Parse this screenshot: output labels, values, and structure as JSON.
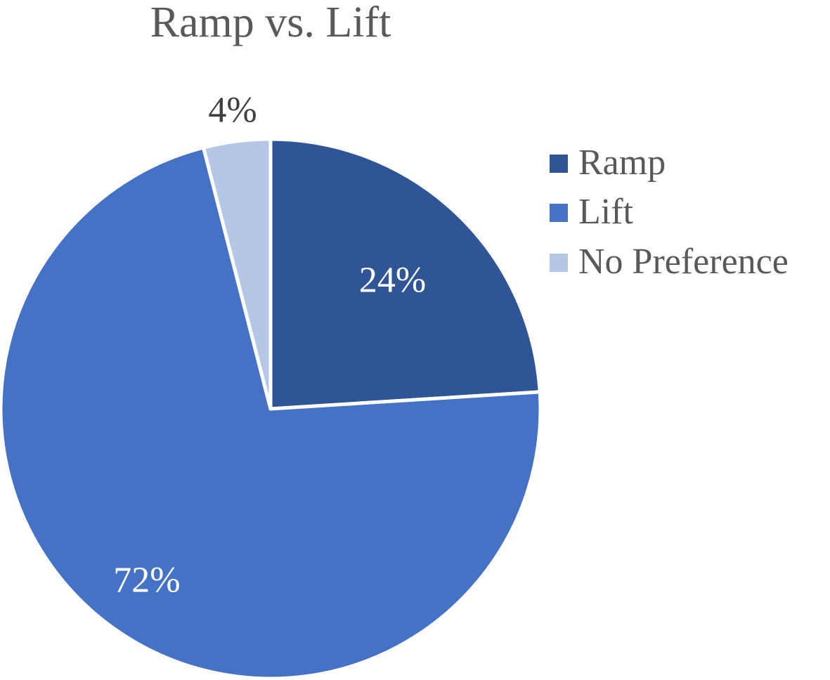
{
  "chart_data": {
    "type": "pie",
    "title": "Ramp vs. Lift",
    "categories": [
      "Ramp",
      "Lift",
      "No Preference"
    ],
    "values": [
      24,
      72,
      4
    ],
    "labels": [
      "24%",
      "72%",
      "4%"
    ],
    "colors": [
      "#2F5597",
      "#4472C4",
      "#B4C7E7"
    ],
    "label_colors": [
      "#ffffff",
      "#ffffff",
      "#404040"
    ],
    "legend_placement": "right",
    "start_angle": "12 o'clock",
    "direction": "clockwise"
  }
}
